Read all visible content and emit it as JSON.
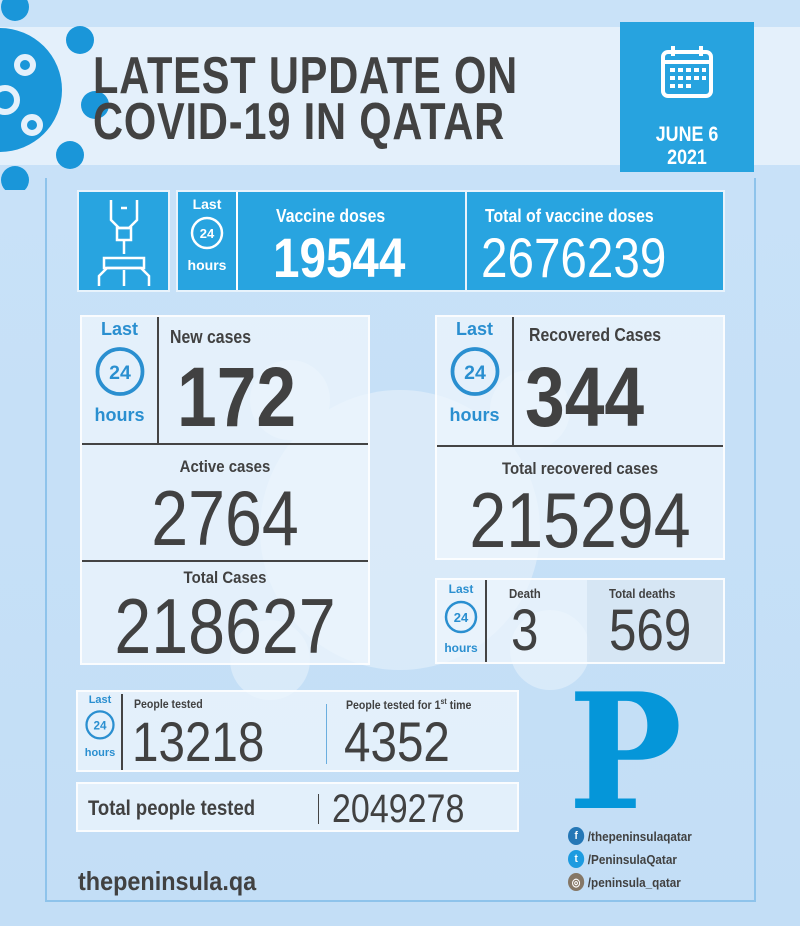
{
  "header": {
    "title_line1": "LATEST UPDATE ON",
    "title_line2": "COVID-19 IN QATAR",
    "date_line1": "JUNE 6",
    "date_line2": "2021"
  },
  "last24": {
    "top": "Last",
    "mid": "24",
    "bottom": "hours"
  },
  "vaccine": {
    "label": "Vaccine doses",
    "value": "19544",
    "total_label": "Total of vaccine doses",
    "total_value": "2676239"
  },
  "cases": {
    "new_label": "New cases",
    "new_value": "172",
    "active_label": "Active cases",
    "active_value": "2764",
    "total_label": "Total Cases",
    "total_value": "218627"
  },
  "recovered": {
    "label": "Recovered Cases",
    "value": "344",
    "total_label": "Total recovered cases",
    "total_value": "215294"
  },
  "deaths": {
    "label": "Death",
    "value": "3",
    "total_label": "Total deaths",
    "total_value": "569"
  },
  "tests": {
    "label": "People tested",
    "value": "13218",
    "first_label": "People tested for 1",
    "first_sup": "st",
    "first_suffix": " time",
    "first_value": "4352",
    "total_label": "Total people tested",
    "total_value": "2049278"
  },
  "brand": {
    "logo": "P",
    "website": "thepeninsula.qa",
    "facebook": "/thepeninsulaqatar",
    "twitter": "/PeninsulaQatar",
    "instagram": "/peninsula_qatar"
  },
  "colors": {
    "accent": "#28a4e0",
    "logo": "#0596d9",
    "text": "#414141"
  }
}
